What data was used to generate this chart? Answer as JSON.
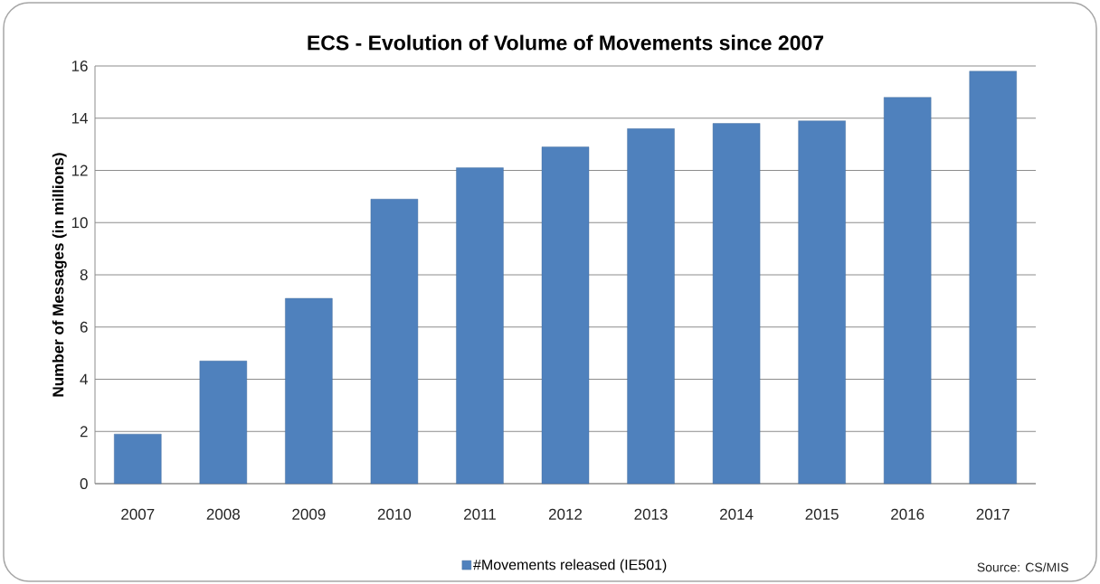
{
  "chart_data": {
    "type": "bar",
    "title": "ECS - Evolution of Volume of Movements since 2007",
    "ylabel": "Number of Messages (in millions)",
    "categories": [
      "2007",
      "2008",
      "2009",
      "2010",
      "2011",
      "2012",
      "2013",
      "2014",
      "2015",
      "2016",
      "2017"
    ],
    "series": [
      {
        "name": "#Movements released (IE501)",
        "color": "#4f81bd",
        "values": [
          1.9,
          4.7,
          7.1,
          10.9,
          12.1,
          12.9,
          13.6,
          13.8,
          13.9,
          14.8,
          15.8
        ]
      }
    ],
    "ylim": [
      0,
      16
    ],
    "yticks": [
      0,
      2,
      4,
      6,
      8,
      10,
      12,
      14,
      16
    ],
    "grid": "y",
    "legend": "bottom",
    "annotations": [
      "Source: CS/MIS"
    ]
  }
}
